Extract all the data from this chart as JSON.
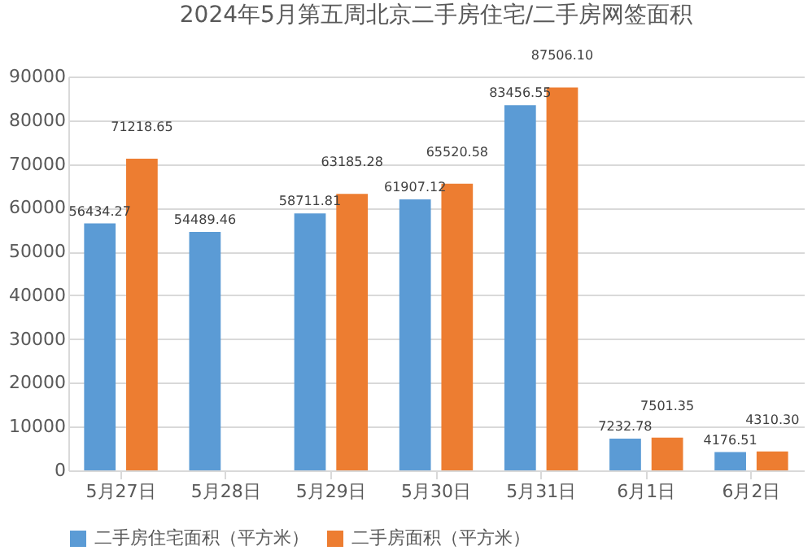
{
  "chart_data": {
    "type": "bar",
    "title": "2024年5月第五周北京二手房住宅/二手房网签面积",
    "categories": [
      "5月27日",
      "5月28日",
      "5月29日",
      "5月30日",
      "5月31日",
      "6月1日",
      "6月2日"
    ],
    "series": [
      {
        "name": "二手房住宅面积（平方米）",
        "color": "#5b9bd5",
        "values": [
          56434.27,
          54489.46,
          58711.81,
          61907.12,
          83456.55,
          7232.78,
          4176.51
        ],
        "value_labels": [
          "56434.27",
          "54489.46",
          "58711.81",
          "61907.12",
          "83456.55",
          "7232.78",
          "4176.51"
        ]
      },
      {
        "name": "二手房面积（平方米）",
        "color": "#ed7d31",
        "values": [
          71218.65,
          null,
          63185.28,
          65520.58,
          87506.1,
          7501.35,
          4310.3
        ],
        "value_labels": [
          "71218.65",
          null,
          "63185.28",
          "65520.58",
          "87506.10",
          "7501.35",
          "4310.30"
        ]
      }
    ],
    "ylim": [
      0,
      90000
    ],
    "yticks": [
      0,
      10000,
      20000,
      30000,
      40000,
      50000,
      60000,
      70000,
      80000,
      90000
    ],
    "grid": "y",
    "legend": "bottom"
  }
}
